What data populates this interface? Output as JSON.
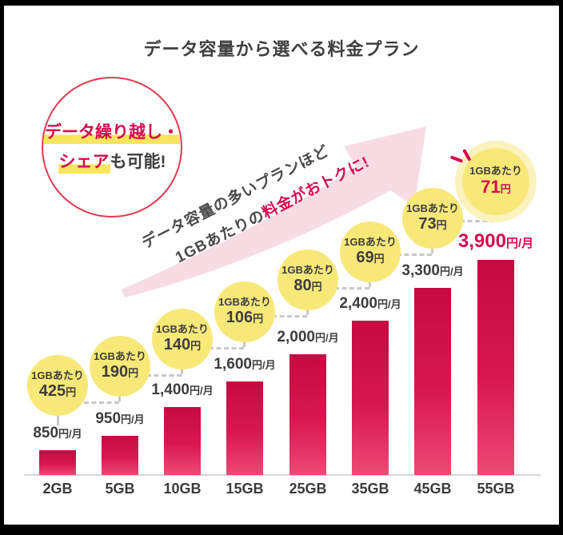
{
  "title": "データ容量から選べる料金プラン",
  "badge": {
    "line1": "データ繰り越し・",
    "line2_highlight": "シェア",
    "line2_rest": "も可能!"
  },
  "arrow_note": {
    "line1": "データ容量の多いプランほど",
    "line2_prefix": "1GBあたりの",
    "line2_accent": "料金がおトクに!"
  },
  "chart_data": {
    "type": "bar",
    "title": "データ容量から選べる料金プラン",
    "categories": [
      "2GB",
      "5GB",
      "10GB",
      "15GB",
      "25GB",
      "35GB",
      "45GB",
      "55GB"
    ],
    "values": [
      850,
      950,
      1400,
      1600,
      2000,
      2400,
      3300,
      3900
    ],
    "value_labels": [
      "850",
      "950",
      "1,400",
      "1,600",
      "2,000",
      "2,400",
      "3,300",
      "3,900"
    ],
    "value_unit": "円/月",
    "per_gb_label": "1GBあたり",
    "per_gb_values": [
      425,
      190,
      140,
      106,
      80,
      69,
      73,
      71
    ],
    "per_gb_value_labels": [
      "425",
      "190",
      "140",
      "106",
      "80",
      "69",
      "73",
      "71"
    ],
    "per_gb_unit": "円",
    "highlighted_category": "55GB",
    "legend": "none",
    "grid": "off",
    "ylabel": "",
    "xlabel": ""
  },
  "colors": {
    "accent_red": "#d6094e",
    "badge_border_red": "#e43a50",
    "bar_top": "#c40b41",
    "bar_bottom": "#ec4a75",
    "bubble_yellow": "#f8e878",
    "bubble_halo": "#fbf2bd",
    "highlight_yellow": "#f8e55e",
    "arrow_pink": "#f8dce4",
    "text_dark": "#3d3d3d",
    "dash_gray": "#c8c8c8",
    "background": "#ffffff",
    "frame": "#000000"
  }
}
